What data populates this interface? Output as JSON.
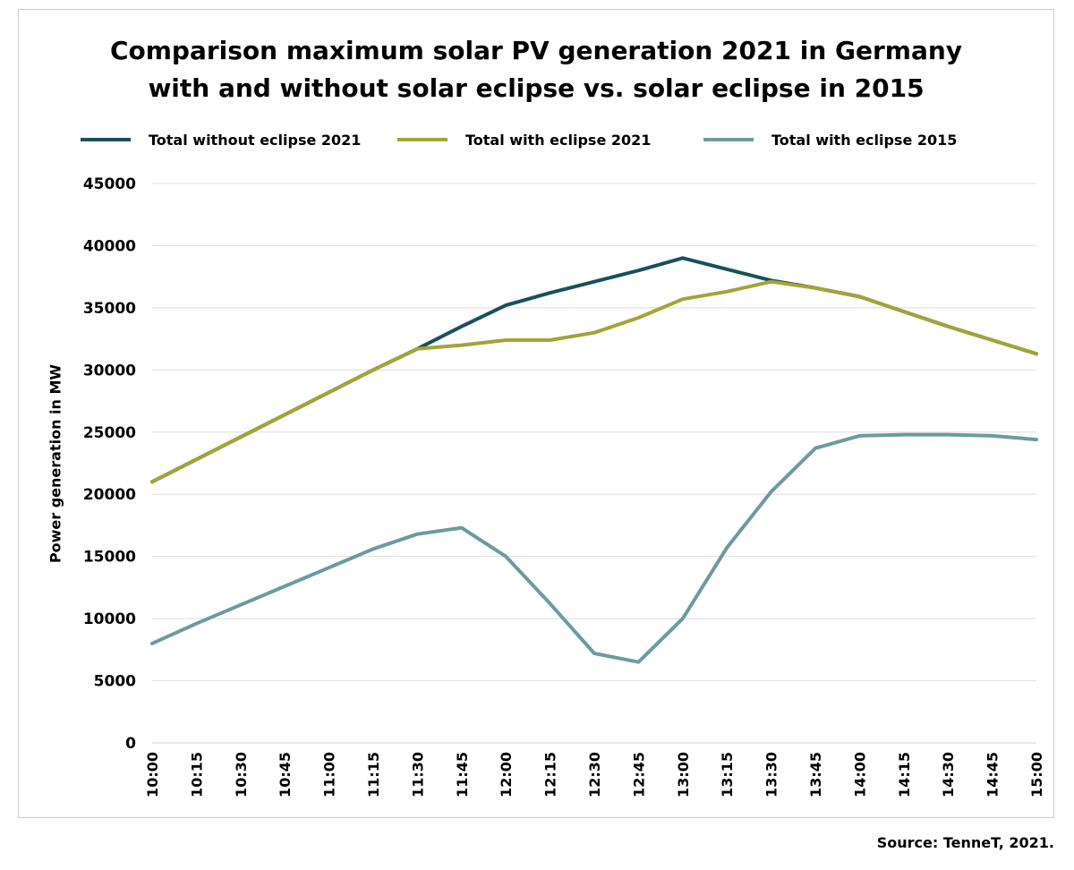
{
  "chart_data": {
    "type": "line",
    "title": "Comparison maximum solar PV generation 2021 in Germany with and without solar eclipse vs. solar eclipse in 2015",
    "title_lines": [
      "Comparison maximum solar PV generation 2021 in Germany",
      "with and without solar eclipse vs. solar eclipse in 2015"
    ],
    "ylabel": "Power generation in MW",
    "xlabel": "",
    "ylim": [
      0,
      45000
    ],
    "yticks": [
      "45000",
      "40000",
      "35000",
      "30000",
      "25000",
      "20000",
      "15000",
      "10000",
      "5000",
      "0"
    ],
    "x": [
      "10:00",
      "10:15",
      "10:30",
      "10:45",
      "11:00",
      "11:15",
      "11:30",
      "11:45",
      "12:00",
      "12:15",
      "12:30",
      "12:45",
      "13:00",
      "13:15",
      "13:30",
      "13:45",
      "14:00",
      "14:15",
      "14:30",
      "14:45",
      "15:00"
    ],
    "grid": true,
    "legend_position": "top",
    "series": [
      {
        "name": "Total without eclipse 2021",
        "color": "#1b4f5c",
        "values": [
          21000,
          22800,
          24600,
          26400,
          28200,
          30000,
          31700,
          33500,
          35200,
          36200,
          37100,
          38000,
          39000,
          38100,
          37200,
          36600,
          35900,
          34700,
          33500,
          32400,
          31300
        ]
      },
      {
        "name": "Total with eclipse 2021",
        "color": "#a2a437",
        "values": [
          21000,
          22800,
          24600,
          26400,
          28200,
          30000,
          31700,
          32000,
          32400,
          32400,
          33000,
          34200,
          35700,
          36300,
          37100,
          36600,
          35900,
          34700,
          33500,
          32400,
          31300
        ]
      },
      {
        "name": "Total with eclipse 2015",
        "color": "#6d9aa0",
        "values": [
          8000,
          9600,
          11100,
          12600,
          14100,
          15600,
          16800,
          17300,
          15000,
          11200,
          7200,
          6500,
          10000,
          15700,
          20200,
          23700,
          24700,
          24800,
          24800,
          24700,
          24400
        ]
      }
    ]
  },
  "source": "Source: TenneT, 2021."
}
